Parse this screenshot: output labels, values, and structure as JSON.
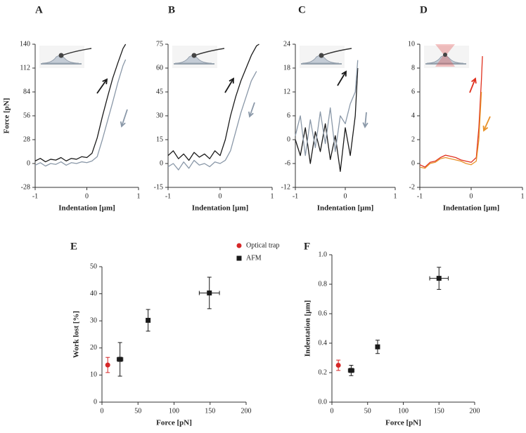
{
  "chart_data": [
    {
      "type": "line",
      "label": "A",
      "ylabel": "Force [pN]",
      "xlabel": "Indentation [µm]",
      "xlim": [
        -1,
        1
      ],
      "xticks": [
        -1,
        0,
        1
      ],
      "ylim": [
        -28,
        140
      ],
      "yticks": [
        -28,
        0,
        28,
        56,
        84,
        112,
        140
      ],
      "x": [
        -1,
        -0.9,
        -0.8,
        -0.7,
        -0.6,
        -0.5,
        -0.4,
        -0.3,
        -0.2,
        -0.1,
        0,
        0.1,
        0.2,
        0.3,
        0.4,
        0.5,
        0.6,
        0.7,
        0.75
      ],
      "series": [
        {
          "color": "#1a1a1a",
          "values": [
            3,
            6,
            2,
            5,
            4,
            7,
            3,
            6,
            5,
            8,
            7,
            12,
            30,
            55,
            78,
            100,
            118,
            135,
            140
          ]
        },
        {
          "color": "#8a98a8",
          "values": [
            -2,
            1,
            -3,
            0,
            -1,
            2,
            -2,
            1,
            0,
            2,
            1,
            3,
            8,
            28,
            50,
            72,
            95,
            115,
            122
          ]
        }
      ]
    },
    {
      "type": "line",
      "label": "B",
      "xlabel": "Indentation [µm]",
      "xlim": [
        -1,
        1
      ],
      "xticks": [
        -1,
        0,
        1
      ],
      "ylim": [
        -15,
        75
      ],
      "yticks": [
        -15,
        0,
        15,
        30,
        45,
        60,
        75
      ],
      "x": [
        -1,
        -0.9,
        -0.8,
        -0.7,
        -0.6,
        -0.5,
        -0.4,
        -0.3,
        -0.2,
        -0.1,
        0,
        0.1,
        0.2,
        0.3,
        0.4,
        0.5,
        0.6,
        0.7,
        0.75
      ],
      "series": [
        {
          "color": "#1a1a1a",
          "values": [
            5,
            8,
            3,
            6,
            2,
            7,
            4,
            6,
            3,
            8,
            5,
            15,
            30,
            42,
            52,
            60,
            68,
            74,
            75
          ]
        },
        {
          "color": "#8a98a8",
          "values": [
            -2,
            0,
            -4,
            1,
            -3,
            2,
            -1,
            0,
            -2,
            1,
            0,
            2,
            8,
            20,
            32,
            42,
            52,
            58,
            null
          ]
        }
      ]
    },
    {
      "type": "line",
      "label": "C",
      "xlabel": "Indentation [µm]",
      "xlim": [
        -1,
        1
      ],
      "xticks": [
        -1,
        0,
        1
      ],
      "ylim": [
        -12,
        24
      ],
      "yticks": [
        -12,
        -6,
        0,
        6,
        12,
        18,
        24
      ],
      "x": [
        -1,
        -0.9,
        -0.8,
        -0.7,
        -0.6,
        -0.5,
        -0.4,
        -0.3,
        -0.2,
        -0.1,
        0,
        0.1,
        0.2,
        0.25
      ],
      "series": [
        {
          "color": "#1a1a1a",
          "values": [
            0,
            -4,
            3,
            -6,
            2,
            -3,
            4,
            -5,
            1,
            -8,
            3,
            -4,
            6,
            18
          ]
        },
        {
          "color": "#8a98a8",
          "values": [
            1,
            6,
            -4,
            5,
            -2,
            7,
            -1,
            8,
            -3,
            6,
            4,
            9,
            12,
            20
          ]
        }
      ]
    },
    {
      "type": "line",
      "label": "D",
      "xlabel": "Indentation [µm]",
      "xlim": [
        -1,
        1
      ],
      "xticks": [
        -1,
        0,
        1
      ],
      "ylim": [
        -2,
        10
      ],
      "yticks": [
        -2,
        0,
        2,
        4,
        6,
        8,
        10
      ],
      "x": [
        -1,
        -0.9,
        -0.8,
        -0.7,
        -0.6,
        -0.5,
        -0.4,
        -0.3,
        -0.2,
        -0.1,
        0,
        0.1,
        0.15,
        0.2,
        0.22
      ],
      "series": [
        {
          "color": "#e0301e",
          "values": [
            -0.1,
            -0.3,
            0.1,
            0.2,
            0.5,
            0.7,
            0.6,
            0.5,
            0.3,
            0.2,
            0.1,
            0.5,
            3,
            7,
            9
          ]
        },
        {
          "color": "#e8922a",
          "values": [
            -0.3,
            -0.4,
            0,
            0.1,
            0.4,
            0.5,
            0.4,
            0.3,
            0.2,
            0,
            -0.1,
            0.2,
            2,
            6,
            null
          ]
        }
      ]
    },
    {
      "type": "scatter",
      "label": "E",
      "ylabel": "Work lost [%]",
      "xlabel": "Force [pN]",
      "xlim": [
        0,
        200
      ],
      "xticks": [
        0,
        50,
        100,
        150,
        200
      ],
      "ylim": [
        0,
        50
      ],
      "yticks": [
        0,
        10,
        20,
        30,
        40,
        50
      ],
      "legend": "upper right",
      "series": [
        {
          "name": "Optical trap",
          "color": "#d62728",
          "marker": "circle",
          "x": [
            8
          ],
          "values": [
            13.7
          ],
          "yerr": [
            2.8
          ]
        },
        {
          "name": "AFM",
          "color": "#1a1a1a",
          "marker": "square",
          "x": [
            25,
            64,
            149
          ],
          "values": [
            15.8,
            30.2,
            40.3
          ],
          "yerr": [
            6.2,
            4,
            5.8
          ],
          "xerr": [
            4,
            2,
            14
          ]
        }
      ]
    },
    {
      "type": "scatter",
      "label": "F",
      "ylabel": "Indentation [µm]",
      "xlabel": "Force [pN]",
      "xlim": [
        0,
        200
      ],
      "xticks": [
        0,
        50,
        100,
        150,
        200
      ],
      "ylim": [
        0,
        1
      ],
      "yticks": [
        {
          "value": 0,
          "label": "0.0"
        },
        0.2,
        0.4,
        0.6,
        0.8,
        {
          "value": 1,
          "label": "1.0"
        }
      ],
      "series": [
        {
          "color": "#d62728",
          "marker": "circle",
          "x": [
            9
          ],
          "values": [
            0.25
          ],
          "yerr": [
            0.035
          ]
        },
        {
          "color": "#1a1a1a",
          "marker": "square",
          "x": [
            27,
            64,
            150
          ],
          "values": [
            0.215,
            0.375,
            0.84
          ],
          "yerr": [
            0.035,
            0.045,
            0.075
          ],
          "xerr": [
            4,
            2,
            13
          ]
        }
      ]
    }
  ]
}
